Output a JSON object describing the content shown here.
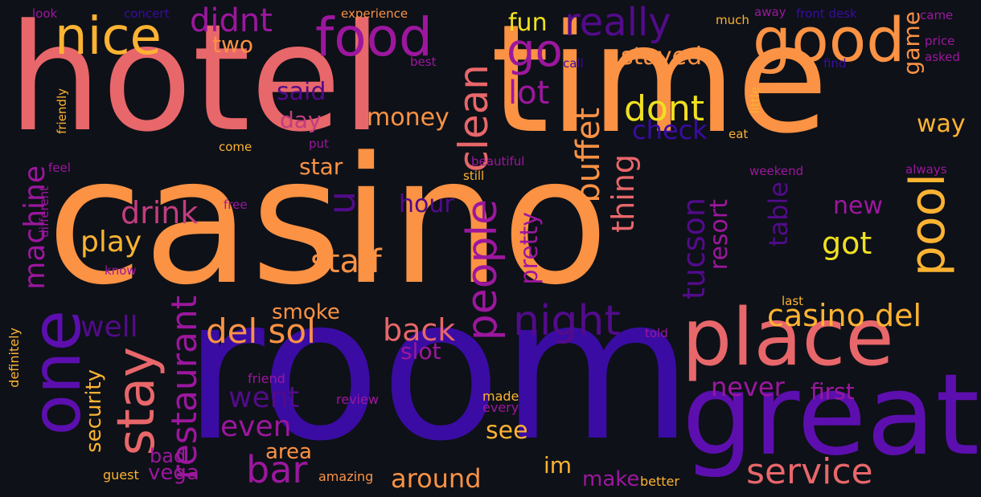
{
  "words": {
    "casino": "casino",
    "room": "room",
    "hotel": "hotel",
    "time": "time",
    "great": "great",
    "place": "place",
    "one": "one",
    "good": "good",
    "food": "food",
    "nice": "nice",
    "go": "go",
    "really": "really",
    "stay": "stay",
    "pool": "pool",
    "dont": "dont",
    "people": "people",
    "clean": "clean",
    "restaurant": "restaurant",
    "service": "service",
    "night": "night",
    "del_sol": "del sol",
    "casino_del": "casino del",
    "bar": "bar",
    "machine": "machine",
    "drink": "drink",
    "play": "play",
    "staff": "staff",
    "u": "u",
    "buffet": "buffet",
    "thing": "thing",
    "tucson": "tucson",
    "resort": "resort",
    "table": "table",
    "got": "got",
    "new": "new",
    "way": "way",
    "game": "game",
    "lot": "lot",
    "didnt": "didnt",
    "fun": "fun",
    "stayed": "stayed",
    "two": "two",
    "said": "said",
    "day": "day",
    "money": "money",
    "check": "check",
    "star": "star",
    "hour": "hour",
    "pretty": "pretty",
    "well": "well",
    "back": "back",
    "smoke": "smoke",
    "slot": "slot",
    "went": "went",
    "even": "even",
    "never": "never",
    "first": "first",
    "area": "area",
    "bad": "bad",
    "vega": "vega",
    "security": "security",
    "see": "see",
    "im": "im",
    "around": "around",
    "make": "make",
    "better": "better",
    "made": "made",
    "every": "every",
    "review": "review",
    "friend": "friend",
    "guest": "guest",
    "amazing": "amazing",
    "definitely": "definitely",
    "different": "different",
    "know": "know",
    "free": "free",
    "feel": "feel",
    "friendly": "friendly",
    "come": "come",
    "put": "put",
    "beautiful": "beautiful",
    "still": "still",
    "best": "best",
    "call": "call",
    "concert": "concert",
    "look": "look",
    "experience": "experience",
    "much": "much",
    "away": "away",
    "front_desk": "front desk",
    "came": "came",
    "price": "price",
    "asked": "asked",
    "find": "find",
    "eat": "eat",
    "little": "little",
    "weekend": "weekend",
    "always": "always",
    "last": "last",
    "told": "told"
  }
}
